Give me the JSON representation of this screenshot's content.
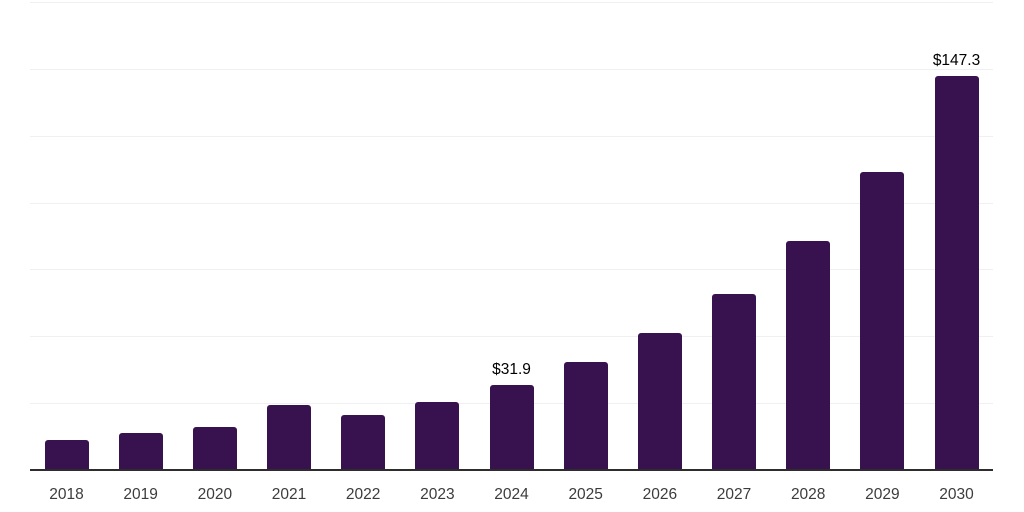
{
  "chart_data": {
    "type": "bar",
    "title": "",
    "xlabel": "",
    "ylabel": "",
    "categories": [
      "2018",
      "2019",
      "2020",
      "2021",
      "2022",
      "2023",
      "2024",
      "2025",
      "2026",
      "2027",
      "2028",
      "2029",
      "2030"
    ],
    "values": [
      11.2,
      13.9,
      16.1,
      24.4,
      20.5,
      25.3,
      31.9,
      40.3,
      51.1,
      65.7,
      85.7,
      111.5,
      147.3
    ],
    "data_labels": {
      "2024": "$31.9",
      "2030": "$147.3"
    },
    "ylim": [
      0,
      175
    ],
    "gridline_values": [
      25,
      50,
      75,
      100,
      125,
      150,
      175
    ],
    "grid": true,
    "legend": false,
    "colors": {
      "bar": "#38124f",
      "axis": "#2d2d2d",
      "gridline": "#f0f0f2",
      "tick_label": "#3c3c3c",
      "data_label": "#000000",
      "background": "#ffffff"
    }
  }
}
